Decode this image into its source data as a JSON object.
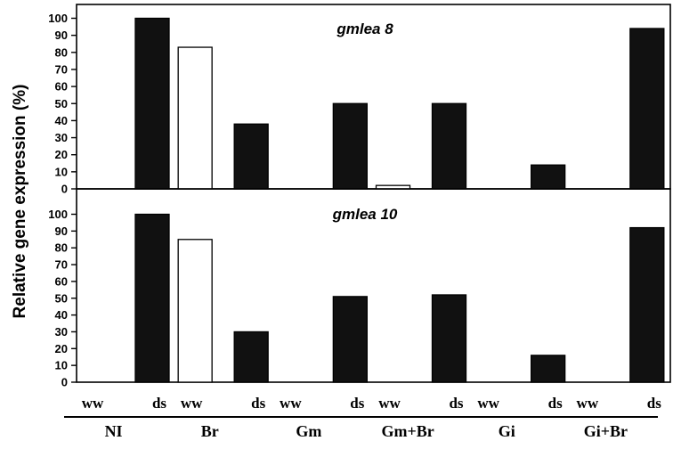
{
  "chart_data": {
    "type": "bar",
    "ylabel": "Relative gene expression (%)",
    "ylim": [
      0,
      100
    ],
    "yticks": [
      "0",
      "10",
      "20",
      "30",
      "40",
      "50",
      "60",
      "70",
      "80",
      "90",
      "100"
    ],
    "groups": [
      "NI",
      "Br",
      "Gm",
      "Gm+Br",
      "Gi",
      "Gi+Br"
    ],
    "conditions": [
      "ww",
      "ds"
    ],
    "colors": {
      "ww": "#ffffff",
      "ds": "#111111",
      "stroke": "#000000"
    },
    "panels": [
      {
        "title": "gmlea 8",
        "series": [
          {
            "name": "ww",
            "values": [
              0,
              83,
              0,
              2,
              0,
              0
            ]
          },
          {
            "name": "ds",
            "values": [
              100,
              38,
              50,
              50,
              14,
              94
            ]
          }
        ]
      },
      {
        "title": "gmlea 10",
        "series": [
          {
            "name": "ww",
            "values": [
              0,
              85,
              0,
              0,
              0,
              0
            ]
          },
          {
            "name": "ds",
            "values": [
              100,
              30,
              51,
              52,
              16,
              92
            ]
          }
        ]
      }
    ]
  }
}
